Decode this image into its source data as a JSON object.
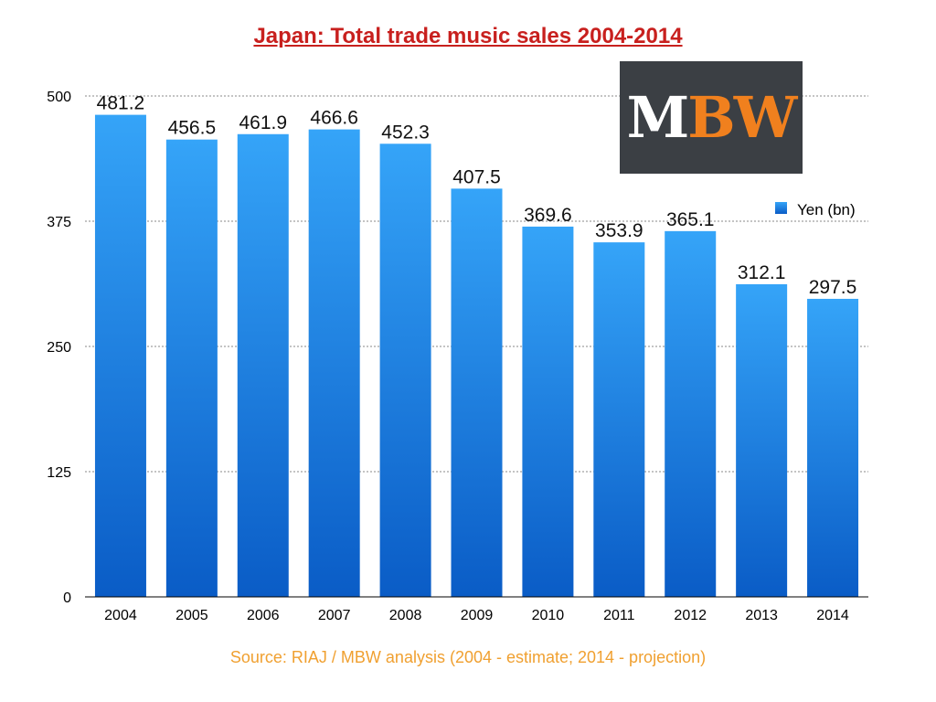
{
  "chart_data": {
    "type": "bar",
    "title": "Japan: Total trade music sales 2004-2014",
    "categories": [
      "2004",
      "2005",
      "2006",
      "2007",
      "2008",
      "2009",
      "2010",
      "2011",
      "2012",
      "2013",
      "2014"
    ],
    "series": [
      {
        "name": "Yen (bn)",
        "values": [
          481.2,
          456.5,
          461.9,
          466.6,
          452.3,
          407.5,
          369.6,
          353.9,
          365.1,
          312.1,
          297.5
        ],
        "color": "#1a7ee0"
      }
    ],
    "data_labels": [
      "481.2",
      "456.5",
      "461.9",
      "466.6",
      "452.3",
      "407.5",
      "369.6",
      "353.9",
      "365.1",
      "312.1",
      "297.5"
    ],
    "y_ticks": [
      "0",
      "125",
      "250",
      "375",
      "500"
    ],
    "ylim": [
      0,
      500
    ],
    "grid": true,
    "legend_position": "right",
    "source_note": "Source: RIAJ / MBW analysis (2004 - estimate; 2014 - projection)"
  },
  "logo": {
    "part1": "M",
    "part2": "BW",
    "color_light": "#ffffff",
    "color_accent": "#f0801e",
    "background": "#3b3f44"
  }
}
